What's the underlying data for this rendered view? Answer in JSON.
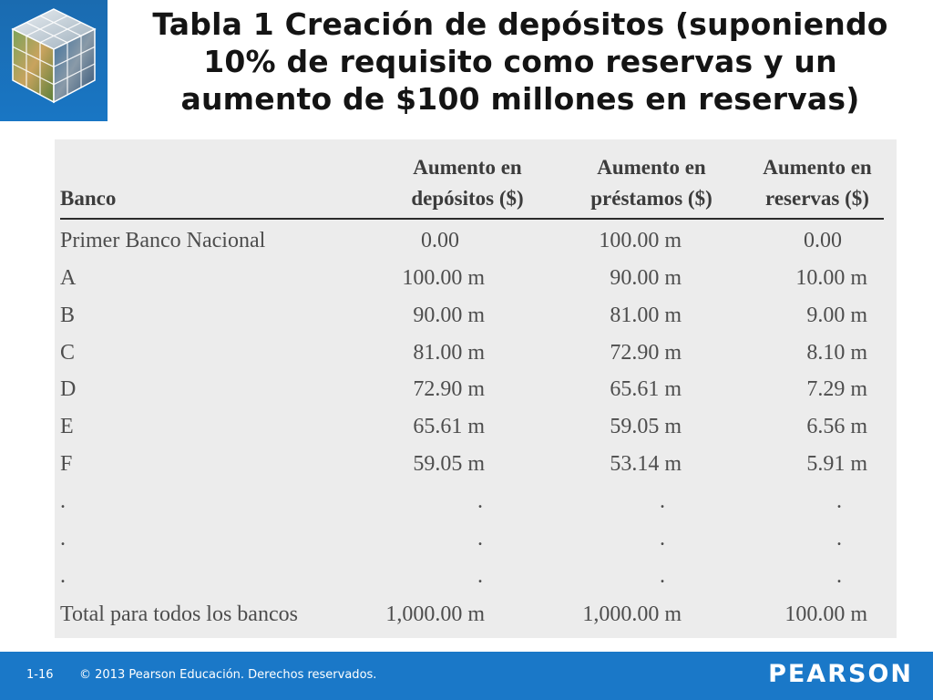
{
  "title_lines": [
    "Tabla 1  Creación de depósitos (suponiendo",
    "10% de requisito como reservas y un",
    "aumento de $100 millones en reservas)"
  ],
  "table": {
    "headers": {
      "bank": "Banco",
      "deposits": [
        "Aumento en",
        "depósitos ($)"
      ],
      "loans": [
        "Aumento en",
        "préstamos ($)"
      ],
      "reserves": [
        "Aumento en",
        "reservas ($)"
      ]
    },
    "rows": [
      [
        "Primer Banco Nacional",
        "0.00",
        "100.00 m",
        "0.00"
      ],
      [
        "A",
        "100.00 m",
        "90.00 m",
        "10.00 m"
      ],
      [
        "B",
        "90.00 m",
        "81.00 m",
        "9.00 m"
      ],
      [
        "C",
        "81.00 m",
        "72.90 m",
        "8.10 m"
      ],
      [
        "D",
        "72.90 m",
        "65.61 m",
        "7.29 m"
      ],
      [
        "E",
        "65.61 m",
        "59.05 m",
        "6.56 m"
      ],
      [
        "F",
        "59.05 m",
        "53.14 m",
        "5.91 m"
      ],
      [
        ".",
        ".",
        ".",
        "."
      ],
      [
        ".",
        ".",
        ".",
        "."
      ],
      [
        ".",
        ".",
        ".",
        "."
      ],
      [
        "Total para todos los bancos",
        "1,000.00 m",
        "1,000.00 m",
        "100.00 m"
      ]
    ]
  },
  "footer": {
    "page_number": "1-16",
    "copyright": "© 2013 Pearson Educación. Derechos reservados.",
    "brand": "PEARSON"
  },
  "colors": {
    "footer_bar": "#1a78c8",
    "logo_background": "#1976c4",
    "table_background": "#ececec"
  }
}
